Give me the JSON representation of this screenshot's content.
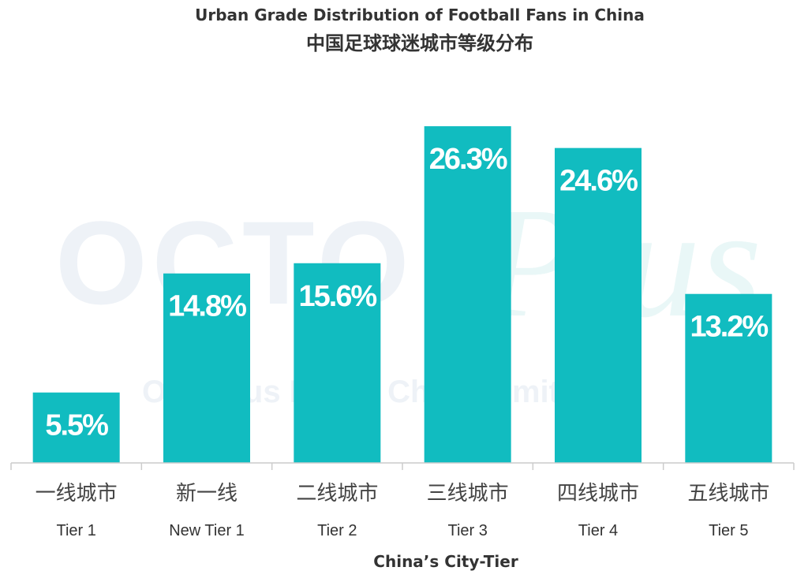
{
  "title": "Urban Grade Distribution of Football Fans in China",
  "subtitle": "中国足球球迷城市等级分布",
  "watermark": {
    "brand": "OCTO",
    "script": "Plus",
    "company": "OctoPlus Media China Limited"
  },
  "chart_data": {
    "type": "bar",
    "categories": [
      "一线城市",
      "新一线",
      "二线城市",
      "三线城市",
      "四线城市",
      "五线城市"
    ],
    "categories_en": [
      "Tier 1",
      "New Tier 1",
      "Tier 2",
      "Tier 3",
      "Tier 4",
      "Tier 5"
    ],
    "values": [
      5.5,
      14.8,
      15.6,
      26.3,
      24.6,
      13.2
    ],
    "value_labels": [
      "5.5%",
      "14.8%",
      "15.6%",
      "26.3%",
      "24.6%",
      "13.2%"
    ],
    "title": "Urban Grade Distribution of Football Fans in China",
    "xlabel": "China’s City-Tier",
    "ylabel": "",
    "ylim": [
      0,
      30
    ],
    "grid": false,
    "bar_color": "#11bcc0"
  }
}
